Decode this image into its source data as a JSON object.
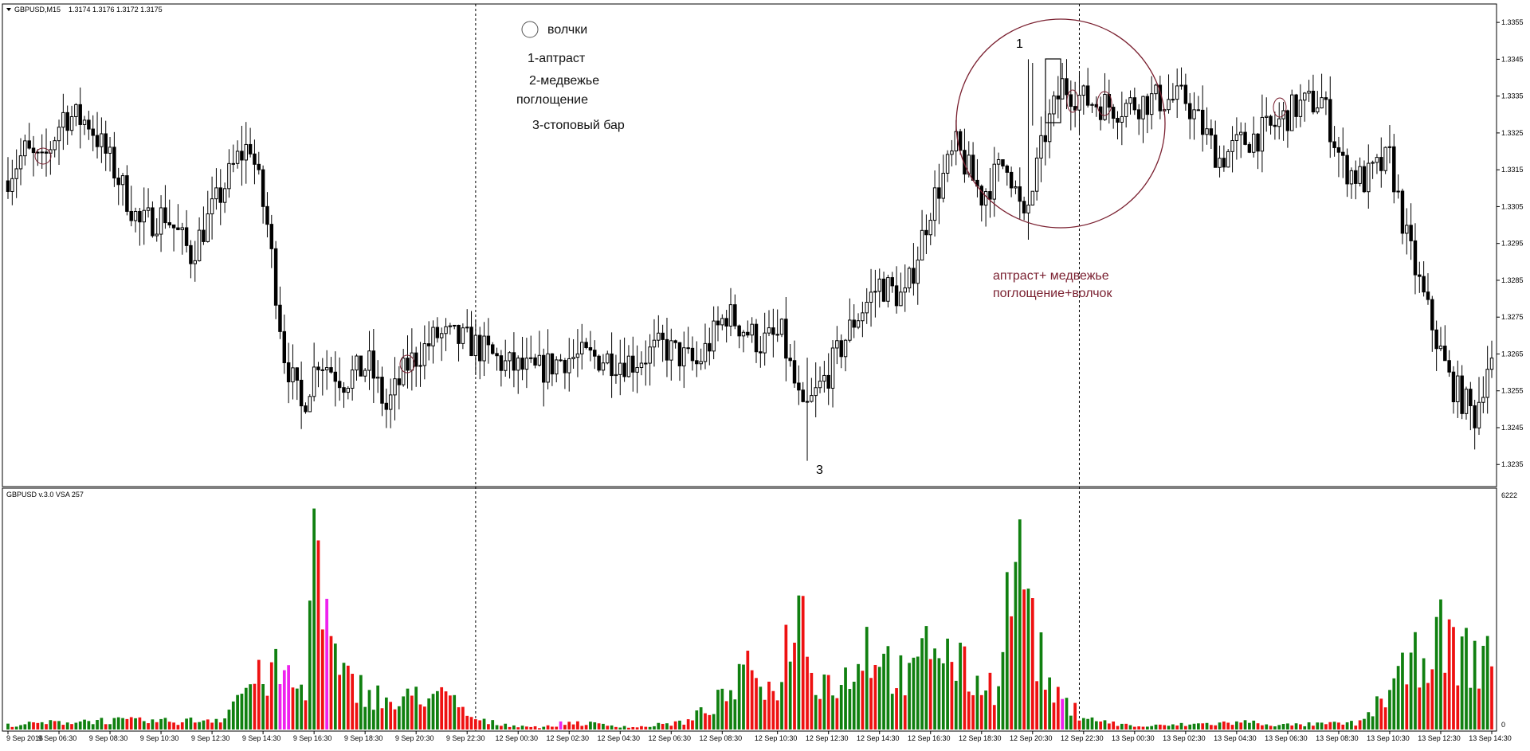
{
  "window": {
    "symbol_header": "GBPUSD,M15",
    "ohlc_header": "1.3174 1.3176 1.3172 1.3175",
    "dropdown_icon": "triangle-down-icon"
  },
  "indicator": {
    "title": "GBPUSD v.3.0 VSA 257",
    "max_label": "6222",
    "zero_label": "0"
  },
  "annotations": {
    "legend_circle_label": "волчки",
    "item_1": "1-аптраст",
    "item_2a": "2-медвежье",
    "item_2b": "поглощение",
    "item_3": "3-стоповый бар",
    "marker_1": "1",
    "marker_3": "3",
    "combo_line1": "аптраст+ медвежье",
    "combo_line2": "поглощение+волчок"
  },
  "colors": {
    "background": "#ffffff",
    "candle_outline": "#000000",
    "bear_body": "#000000",
    "bull_body": "#ffffff",
    "volume_up": "#108010",
    "volume_down": "#ee1111",
    "volume_special": "#ee22ee",
    "annotation_circle": "#7a2030",
    "annotation_text_red": "#7a2030",
    "grid_separator": "#000000"
  },
  "chart_data": [
    {
      "type": "candlestick",
      "title": "GBPUSD,M15",
      "y_tick_labels": [
        "1.3355",
        "1.3345",
        "1.3335",
        "1.3325",
        "1.3315",
        "1.3305",
        "1.3295",
        "1.3285",
        "1.3275",
        "1.3265",
        "1.3255",
        "1.3245",
        "1.3235"
      ],
      "ylim": [
        1.3229,
        1.336
      ],
      "x_tick_labels": [
        "9 Sep 2016",
        "9 Sep 06:30",
        "9 Sep 08:30",
        "9 Sep 10:30",
        "9 Sep 12:30",
        "9 Sep 14:30",
        "9 Sep 16:30",
        "9 Sep 18:30",
        "9 Sep 20:30",
        "9 Sep 22:30",
        "12 Sep 00:30",
        "12 Sep 02:30",
        "12 Sep 04:30",
        "12 Sep 06:30",
        "12 Sep 08:30",
        "12 Sep 10:30",
        "12 Sep 12:30",
        "12 Sep 14:30",
        "12 Sep 16:30",
        "12 Sep 18:30",
        "12 Sep 20:30",
        "12 Sep 22:30",
        "13 Sep 00:30",
        "13 Sep 02:30",
        "13 Sep 04:30",
        "13 Sep 06:30",
        "13 Sep 08:30",
        "13 Sep 10:30",
        "13 Sep 12:30",
        "13 Sep 14:30"
      ],
      "session_separators": [
        "12 Sep 00:00",
        "13 Sep 00:00"
      ],
      "grid": false,
      "price_path": [
        [
          0,
          1.3312
        ],
        [
          5,
          1.332
        ],
        [
          9,
          1.3316
        ],
        [
          14,
          1.333
        ],
        [
          20,
          1.3328
        ],
        [
          26,
          1.3315
        ],
        [
          32,
          1.33
        ],
        [
          38,
          1.3303
        ],
        [
          44,
          1.3292
        ],
        [
          50,
          1.3306
        ],
        [
          55,
          1.3318
        ],
        [
          58,
          1.3322
        ],
        [
          62,
          1.33
        ],
        [
          66,
          1.3265
        ],
        [
          70,
          1.325
        ],
        [
          74,
          1.3264
        ],
        [
          80,
          1.3258
        ],
        [
          86,
          1.3262
        ],
        [
          90,
          1.325
        ],
        [
          95,
          1.3262
        ],
        [
          102,
          1.327
        ],
        [
          110,
          1.3268
        ],
        [
          118,
          1.3262
        ],
        [
          125,
          1.326
        ],
        [
          132,
          1.3264
        ],
        [
          140,
          1.3264
        ],
        [
          148,
          1.3263
        ],
        [
          155,
          1.3267
        ],
        [
          163,
          1.3262
        ],
        [
          170,
          1.3276
        ],
        [
          178,
          1.3268
        ],
        [
          183,
          1.327
        ],
        [
          188,
          1.3248
        ],
        [
          194,
          1.326
        ],
        [
          200,
          1.3274
        ],
        [
          206,
          1.3284
        ],
        [
          212,
          1.328
        ],
        [
          218,
          1.3305
        ],
        [
          224,
          1.3321
        ],
        [
          230,
          1.3308
        ],
        [
          236,
          1.3318
        ],
        [
          240,
          1.33
        ],
        [
          245,
          1.3325
        ],
        [
          249,
          1.3338
        ],
        [
          254,
          1.3334
        ],
        [
          262,
          1.3332
        ],
        [
          270,
          1.3334
        ],
        [
          278,
          1.3334
        ],
        [
          286,
          1.3318
        ],
        [
          292,
          1.3323
        ],
        [
          298,
          1.3326
        ],
        [
          304,
          1.3332
        ],
        [
          310,
          1.3334
        ],
        [
          315,
          1.3316
        ],
        [
          320,
          1.3312
        ],
        [
          326,
          1.3318
        ],
        [
          330,
          1.3296
        ],
        [
          334,
          1.328
        ],
        [
          340,
          1.3258
        ],
        [
          346,
          1.3248
        ],
        [
          349,
          1.3262
        ]
      ],
      "candle_count": 350,
      "highlighted_candles": [
        {
          "marker": "1",
          "label": "аптраст",
          "time": "12 Sep 20:00",
          "high": 1.3345,
          "low": 1.3296
        },
        {
          "marker": "3",
          "label": "стоповый бар",
          "time": "12 Sep 11:00",
          "high": 1.3264,
          "low": 1.3236
        },
        {
          "label": "медвежье поглощение",
          "time": "12 Sep 20:30",
          "high": 1.3344,
          "low": 1.3327
        }
      ]
    },
    {
      "type": "bar",
      "title": "GBPUSD v.3.0 VSA 257",
      "ylim": [
        0,
        6222
      ],
      "y_tick_labels": [
        "6222",
        "0"
      ],
      "series": [
        {
          "name": "",
          "color_role": "up/down/special",
          "bar_count": 350
        }
      ],
      "volume_profile": [
        [
          0,
          120
        ],
        [
          20,
          250
        ],
        [
          40,
          220
        ],
        [
          50,
          300
        ],
        [
          56,
          1200
        ],
        [
          64,
          1600
        ],
        [
          70,
          900
        ],
        [
          72,
          5800
        ],
        [
          74,
          3300
        ],
        [
          78,
          1400
        ],
        [
          84,
          1100
        ],
        [
          92,
          600
        ],
        [
          96,
          1050
        ],
        [
          104,
          800
        ],
        [
          110,
          250
        ],
        [
          118,
          120
        ],
        [
          126,
          60
        ],
        [
          132,
          200
        ],
        [
          148,
          60
        ],
        [
          160,
          220
        ],
        [
          170,
          1000
        ],
        [
          176,
          1800
        ],
        [
          180,
          900
        ],
        [
          186,
          3600
        ],
        [
          190,
          1500
        ],
        [
          196,
          1200
        ],
        [
          202,
          2400
        ],
        [
          208,
          1700
        ],
        [
          212,
          1300
        ],
        [
          218,
          2600
        ],
        [
          222,
          1900
        ],
        [
          228,
          1300
        ],
        [
          232,
          1200
        ],
        [
          238,
          5600
        ],
        [
          242,
          2200
        ],
        [
          246,
          900
        ],
        [
          252,
          450
        ],
        [
          258,
          200
        ],
        [
          266,
          80
        ],
        [
          280,
          150
        ],
        [
          292,
          200
        ],
        [
          300,
          120
        ],
        [
          310,
          150
        ],
        [
          318,
          180
        ],
        [
          326,
          1200
        ],
        [
          332,
          2000
        ],
        [
          336,
          2600
        ],
        [
          340,
          2200
        ],
        [
          346,
          1800
        ],
        [
          349,
          2500
        ]
      ]
    }
  ]
}
